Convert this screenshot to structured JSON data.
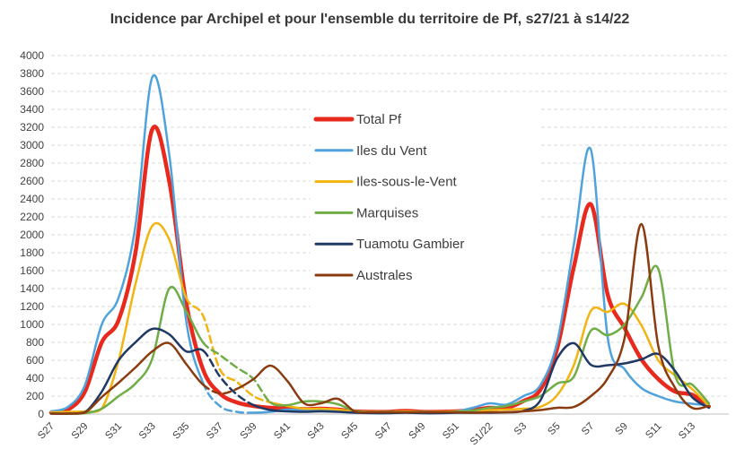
{
  "title": "Incidence par Archipel et pour l'ensemble du territoire de Pf, s27/21 à s14/22",
  "chart_data": {
    "type": "line",
    "title": "Incidence par Archipel et pour l'ensemble du territoire de Pf, s27/21 à s14/22",
    "xlabel": "",
    "ylabel": "",
    "ylim": [
      0,
      4000
    ],
    "y_tick_step": 200,
    "grid": "horizontal-dashed",
    "grid_color": "#d9d9d9",
    "axis_line_color": "#bfbfbf",
    "legend_position": "inside-top-center",
    "x_tick_labels": [
      "S27",
      "S29",
      "S31",
      "S33",
      "S35",
      "S37",
      "S39",
      "S41",
      "S43",
      "S45",
      "S47",
      "S49",
      "S51",
      "S1/22",
      "S3",
      "S5",
      "S7",
      "S9",
      "S11",
      "S13"
    ],
    "weeks": [
      "S27",
      "S28",
      "S29",
      "S30",
      "S31",
      "S32",
      "S33",
      "S34",
      "S35",
      "S36",
      "S37",
      "S38",
      "S39",
      "S40",
      "S41",
      "S42",
      "S43",
      "S44",
      "S45",
      "S46",
      "S47",
      "S48",
      "S49",
      "S50",
      "S51",
      "S52",
      "S1/22",
      "S2",
      "S3",
      "S4",
      "S5",
      "S6",
      "S7",
      "S8",
      "S9",
      "S10",
      "S11",
      "S12",
      "S13",
      "S14"
    ],
    "dashed_note": "dashed_range = [startWeekIndex,endWeekIndex] drawn as estimated (dashed) data",
    "series": [
      {
        "name": "Total Pf",
        "color": "#e8291d",
        "stroke_width": 4.5,
        "values": [
          15,
          50,
          250,
          800,
          1050,
          1800,
          3180,
          2600,
          1250,
          500,
          230,
          130,
          90,
          70,
          65,
          55,
          60,
          50,
          30,
          25,
          25,
          35,
          25,
          25,
          30,
          45,
          70,
          70,
          145,
          270,
          730,
          1650,
          2340,
          1330,
          960,
          610,
          390,
          250,
          215,
          85
        ],
        "dashed_range": null
      },
      {
        "name": "Iles du Vent",
        "color": "#4fa3dc",
        "stroke_width": 2.5,
        "values": [
          30,
          80,
          320,
          1000,
          1300,
          2100,
          3760,
          2900,
          1050,
          350,
          90,
          25,
          15,
          25,
          50,
          40,
          50,
          40,
          20,
          15,
          15,
          25,
          20,
          20,
          30,
          70,
          120,
          105,
          200,
          320,
          800,
          1900,
          2950,
          850,
          500,
          290,
          200,
          140,
          115,
          100
        ],
        "dashed_range": [
          9,
          12
        ]
      },
      {
        "name": "Iles-sous-le-Vent",
        "color": "#f2b411",
        "stroke_width": 2.5,
        "values": [
          20,
          25,
          30,
          60,
          600,
          1450,
          2100,
          1950,
          1300,
          1100,
          500,
          360,
          200,
          130,
          90,
          60,
          60,
          50,
          30,
          25,
          25,
          30,
          25,
          25,
          30,
          35,
          45,
          50,
          60,
          80,
          210,
          550,
          1150,
          1140,
          1230,
          990,
          600,
          430,
          280,
          90
        ],
        "dashed_range": [
          8,
          13
        ]
      },
      {
        "name": "Marquises",
        "color": "#70ad47",
        "stroke_width": 2.5,
        "values": [
          5,
          5,
          10,
          60,
          200,
          340,
          620,
          1400,
          1150,
          800,
          660,
          520,
          390,
          130,
          100,
          140,
          140,
          110,
          35,
          20,
          25,
          20,
          25,
          20,
          25,
          40,
          70,
          90,
          140,
          200,
          340,
          420,
          930,
          880,
          1000,
          1300,
          1620,
          430,
          330,
          120
        ],
        "dashed_range": [
          9,
          13
        ]
      },
      {
        "name": "Tuamotu Gambier",
        "color": "#1f3864",
        "stroke_width": 2.5,
        "values": [
          5,
          5,
          20,
          250,
          600,
          800,
          950,
          890,
          700,
          710,
          420,
          220,
          100,
          45,
          30,
          25,
          30,
          25,
          15,
          10,
          10,
          15,
          10,
          10,
          15,
          15,
          15,
          20,
          35,
          150,
          620,
          790,
          550,
          545,
          565,
          610,
          670,
          480,
          190,
          70
        ],
        "dashed_range": [
          9,
          12
        ]
      },
      {
        "name": "Australes",
        "color": "#8a3c10",
        "stroke_width": 2.5,
        "values": [
          5,
          5,
          15,
          190,
          350,
          520,
          700,
          790,
          560,
          330,
          230,
          280,
          390,
          540,
          370,
          120,
          120,
          170,
          30,
          20,
          20,
          20,
          20,
          20,
          20,
          15,
          20,
          20,
          30,
          45,
          70,
          80,
          200,
          400,
          850,
          2120,
          760,
          290,
          70,
          90
        ],
        "dashed_range": [
          9,
          11
        ]
      }
    ]
  }
}
